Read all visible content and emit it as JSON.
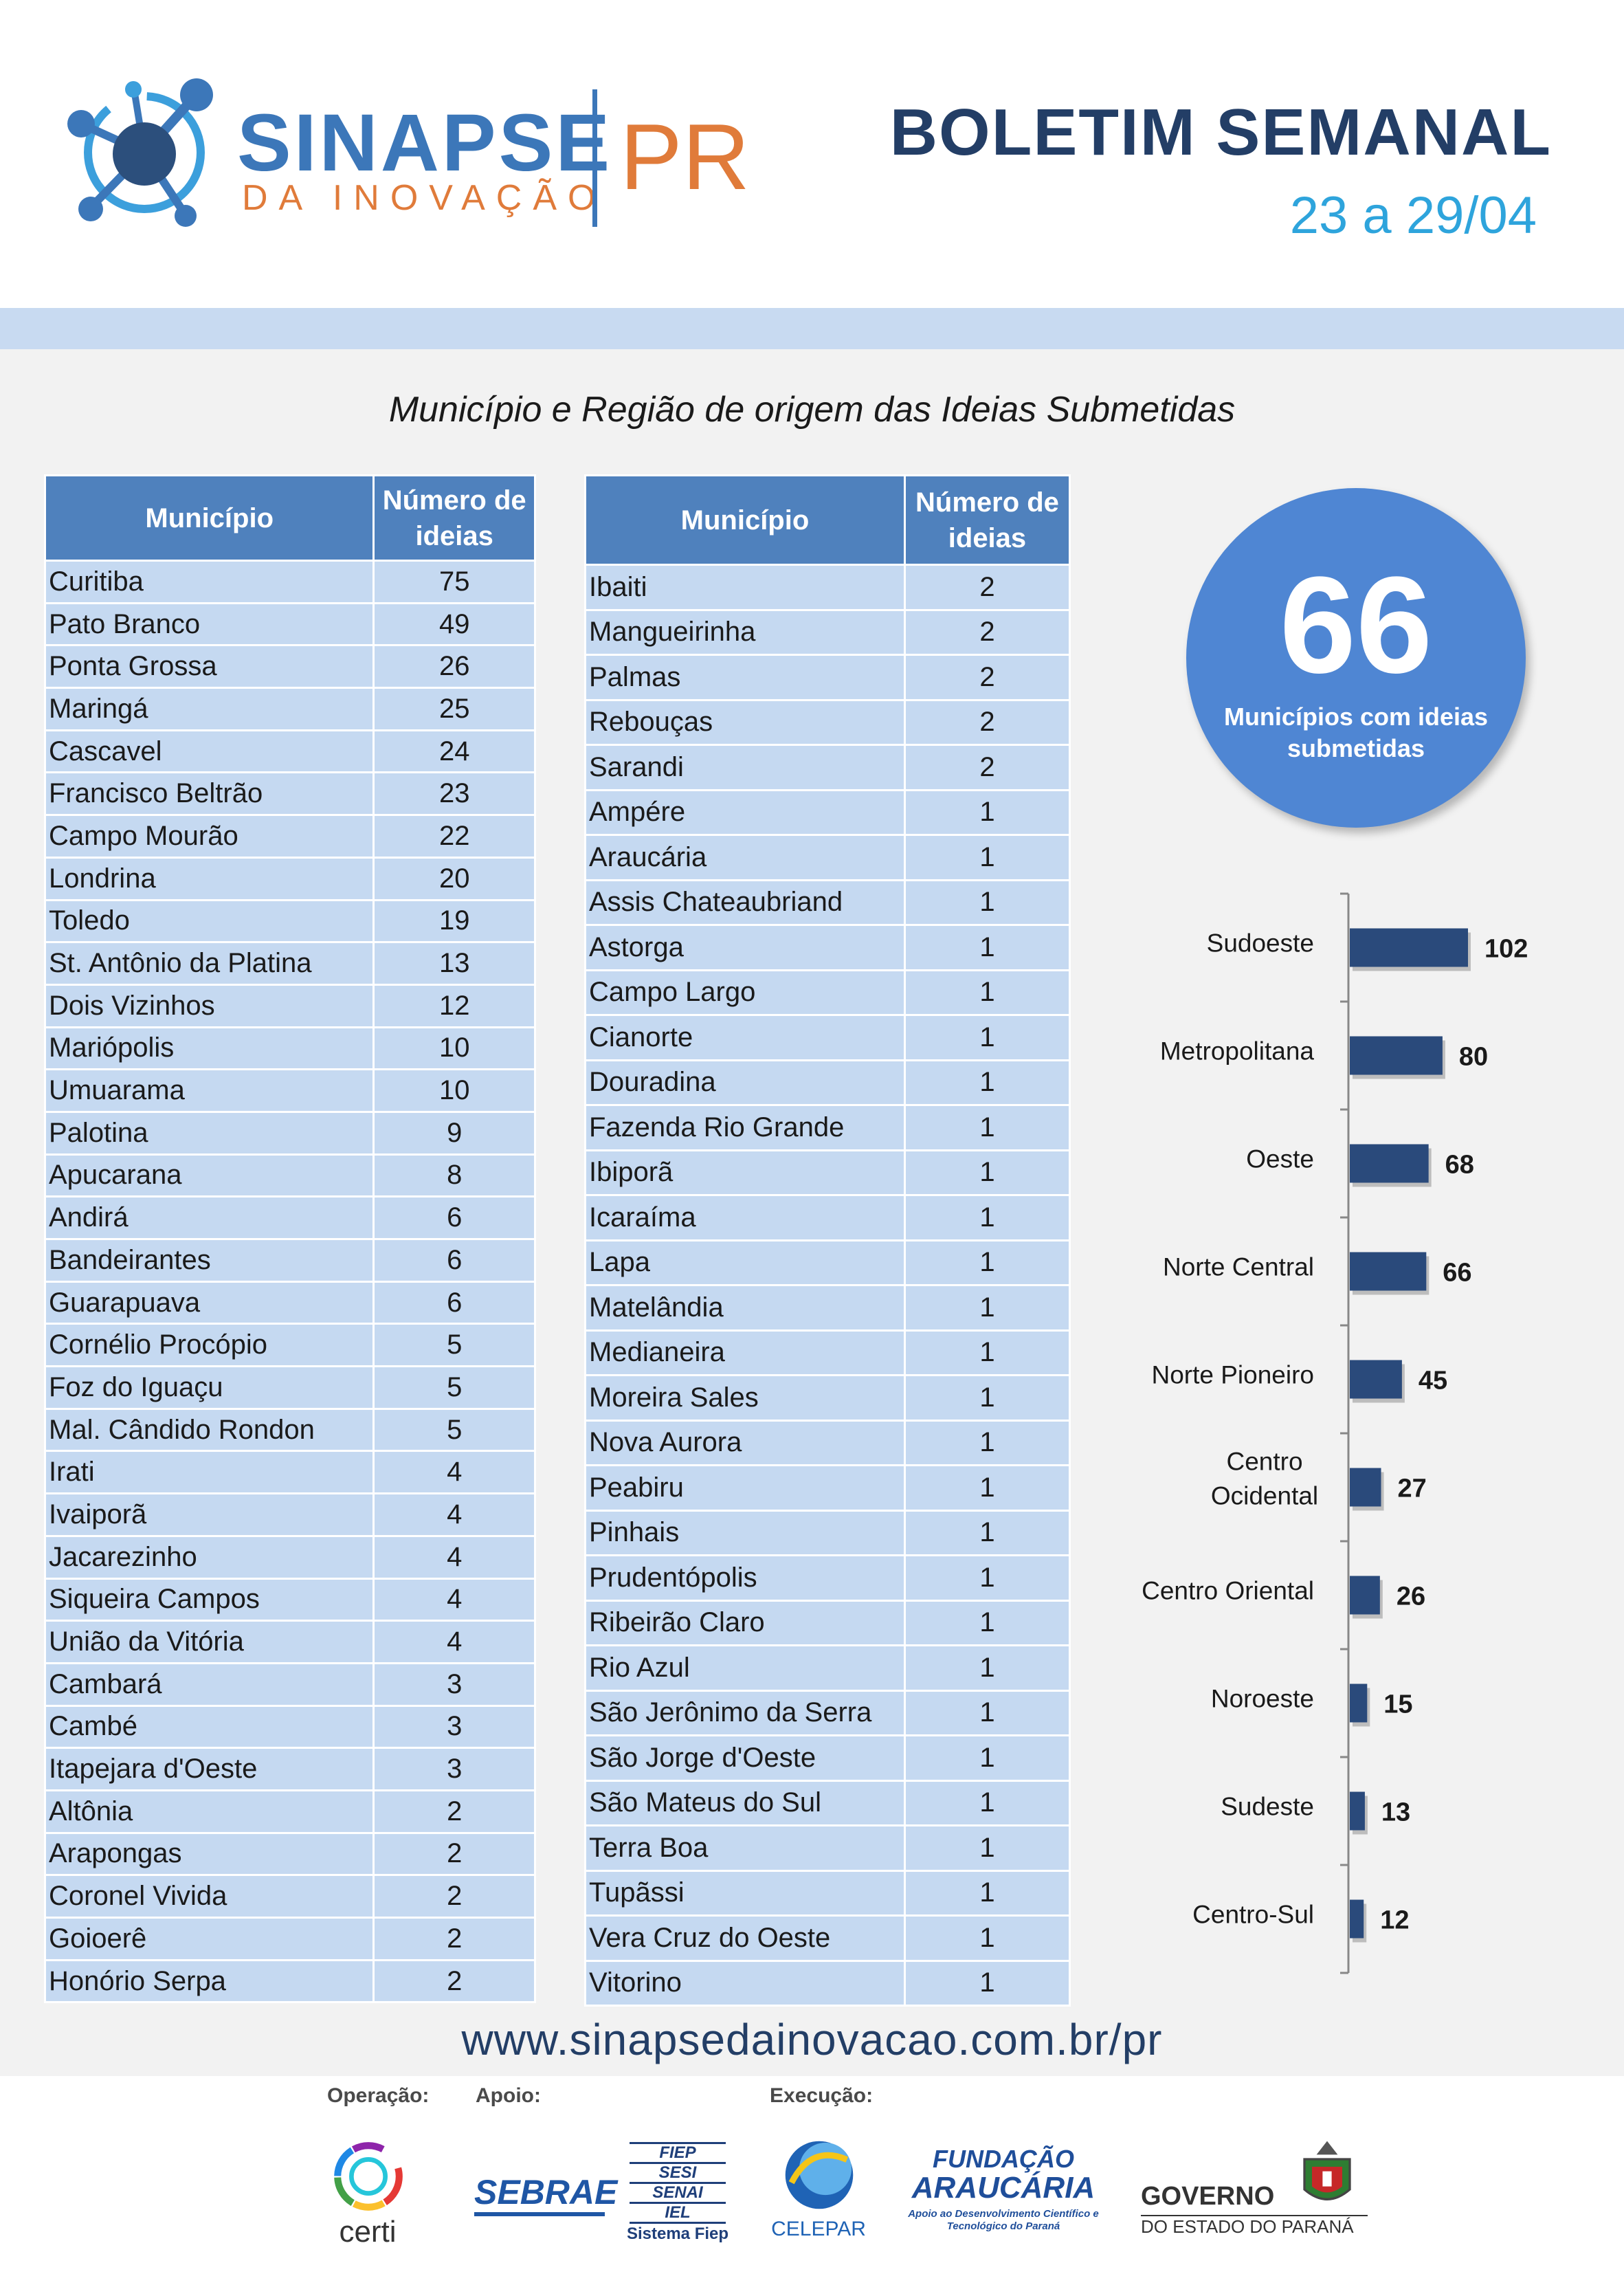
{
  "header": {
    "logo_main": "SINAPSE",
    "logo_sub": "DA INOVAÇÃO",
    "logo_pr": "PR",
    "title": "BOLETIM SEMANAL",
    "date": "23 a 29/04"
  },
  "subtitle": "Município e Região  de origem das Ideias Submetidas",
  "table1": {
    "col_municipio": "Município",
    "col_numero": "Número de ideias",
    "rows": [
      {
        "name": "Curitiba",
        "value": "75"
      },
      {
        "name": "Pato Branco",
        "value": "49"
      },
      {
        "name": "Ponta Grossa",
        "value": "26"
      },
      {
        "name": "Maringá",
        "value": "25"
      },
      {
        "name": "Cascavel",
        "value": "24"
      },
      {
        "name": "Francisco Beltrão",
        "value": "23"
      },
      {
        "name": "Campo Mourão",
        "value": "22"
      },
      {
        "name": "Londrina",
        "value": "20"
      },
      {
        "name": "Toledo",
        "value": "19"
      },
      {
        "name": "St. Antônio da Platina",
        "value": "13"
      },
      {
        "name": "Dois Vizinhos",
        "value": "12"
      },
      {
        "name": "Mariópolis",
        "value": "10"
      },
      {
        "name": "Umuarama",
        "value": "10"
      },
      {
        "name": "Palotina",
        "value": "9"
      },
      {
        "name": "Apucarana",
        "value": "8"
      },
      {
        "name": "Andirá",
        "value": "6"
      },
      {
        "name": "Bandeirantes",
        "value": "6"
      },
      {
        "name": "Guarapuava",
        "value": "6"
      },
      {
        "name": "Cornélio Procópio",
        "value": "5"
      },
      {
        "name": "Foz do Iguaçu",
        "value": "5"
      },
      {
        "name": "Mal. Cândido Rondon",
        "value": "5"
      },
      {
        "name": "Irati",
        "value": "4"
      },
      {
        "name": "Ivaiporã",
        "value": "4"
      },
      {
        "name": "Jacarezinho",
        "value": "4"
      },
      {
        "name": "Siqueira Campos",
        "value": "4"
      },
      {
        "name": "União da Vitória",
        "value": "4"
      },
      {
        "name": "Cambará",
        "value": "3"
      },
      {
        "name": "Cambé",
        "value": "3"
      },
      {
        "name": "Itapejara d'Oeste",
        "value": "3"
      },
      {
        "name": "Altônia",
        "value": "2"
      },
      {
        "name": "Arapongas",
        "value": "2"
      },
      {
        "name": "Coronel Vivida",
        "value": "2"
      },
      {
        "name": "Goioerê",
        "value": "2"
      },
      {
        "name": "Honório Serpa",
        "value": "2"
      }
    ]
  },
  "table2": {
    "col_municipio": "Município",
    "col_numero": "Número de ideias",
    "rows": [
      {
        "name": "Ibaiti",
        "value": "2"
      },
      {
        "name": "Mangueirinha",
        "value": "2"
      },
      {
        "name": "Palmas",
        "value": "2"
      },
      {
        "name": "Rebouças",
        "value": "2"
      },
      {
        "name": "Sarandi",
        "value": "2"
      },
      {
        "name": "Ampére",
        "value": "1"
      },
      {
        "name": "Araucária",
        "value": "1"
      },
      {
        "name": "Assis Chateaubriand",
        "value": "1"
      },
      {
        "name": "Astorga",
        "value": "1"
      },
      {
        "name": "Campo Largo",
        "value": "1"
      },
      {
        "name": "Cianorte",
        "value": "1"
      },
      {
        "name": "Douradina",
        "value": "1"
      },
      {
        "name": "Fazenda Rio Grande",
        "value": "1"
      },
      {
        "name": "Ibiporã",
        "value": "1"
      },
      {
        "name": "Icaraíma",
        "value": "1"
      },
      {
        "name": "Lapa",
        "value": "1"
      },
      {
        "name": "Matelândia",
        "value": "1"
      },
      {
        "name": "Medianeira",
        "value": "1"
      },
      {
        "name": "Moreira Sales",
        "value": "1"
      },
      {
        "name": "Nova Aurora",
        "value": "1"
      },
      {
        "name": "Peabiru",
        "value": "1"
      },
      {
        "name": "Pinhais",
        "value": "1"
      },
      {
        "name": "Prudentópolis",
        "value": "1"
      },
      {
        "name": "Ribeirão Claro",
        "value": "1"
      },
      {
        "name": "Rio Azul",
        "value": "1"
      },
      {
        "name": "São Jerônimo da Serra",
        "value": "1"
      },
      {
        "name": "São Jorge d'Oeste",
        "value": "1"
      },
      {
        "name": "São Mateus do Sul",
        "value": "1"
      },
      {
        "name": "Terra Boa",
        "value": "1"
      },
      {
        "name": "Tupãssi",
        "value": "1"
      },
      {
        "name": "Vera Cruz do Oeste",
        "value": "1"
      },
      {
        "name": "Vitorino",
        "value": "1"
      }
    ]
  },
  "summary": {
    "count": "66",
    "label": "Municípios com ideias submetidas"
  },
  "chart_data": {
    "type": "bar",
    "orientation": "horizontal",
    "categories": [
      "Sudoeste",
      "Metropolitana",
      "Oeste",
      "Norte Central",
      "Norte Pioneiro",
      "Centro Ocidental",
      "Centro Oriental",
      "Noroeste",
      "Sudeste",
      "Centro-Sul"
    ],
    "values": [
      102,
      80,
      68,
      66,
      45,
      27,
      26,
      15,
      13,
      12
    ],
    "data_labels": true,
    "grid": false,
    "color": "#2a4a7b"
  },
  "url": "www.sinapsedainovacao.com.br/pr",
  "footer": {
    "operacao": "Operação:",
    "apoio": "Apoio:",
    "execucao": "Execução:",
    "certi": "certi",
    "sebrae": "SEBRAE",
    "fiep_lines": [
      "FIEP",
      "SESI",
      "SENAI",
      "IEL"
    ],
    "sistema_fiep": "Sistema Fiep",
    "celepar": "CELEPAR",
    "fundacao": "FUNDAÇÃO",
    "araucaria": "ARAUCÁRIA",
    "araucaria_sub": "Apoio ao Desenvolvimento Científico e Tecnológico do Paraná",
    "governo": "GOVERNO",
    "governo_sub": "DO ESTADO DO PARANÁ"
  },
  "colors": {
    "brand_blue": "#3c77b9",
    "brand_orange": "#e07b3a",
    "title_navy": "#233e66",
    "date_cyan": "#2ea4dc",
    "table_header": "#4f81bd",
    "table_cell": "#c5d9f1",
    "circle": "#4f86d3",
    "bar": "#2a4a7b"
  }
}
